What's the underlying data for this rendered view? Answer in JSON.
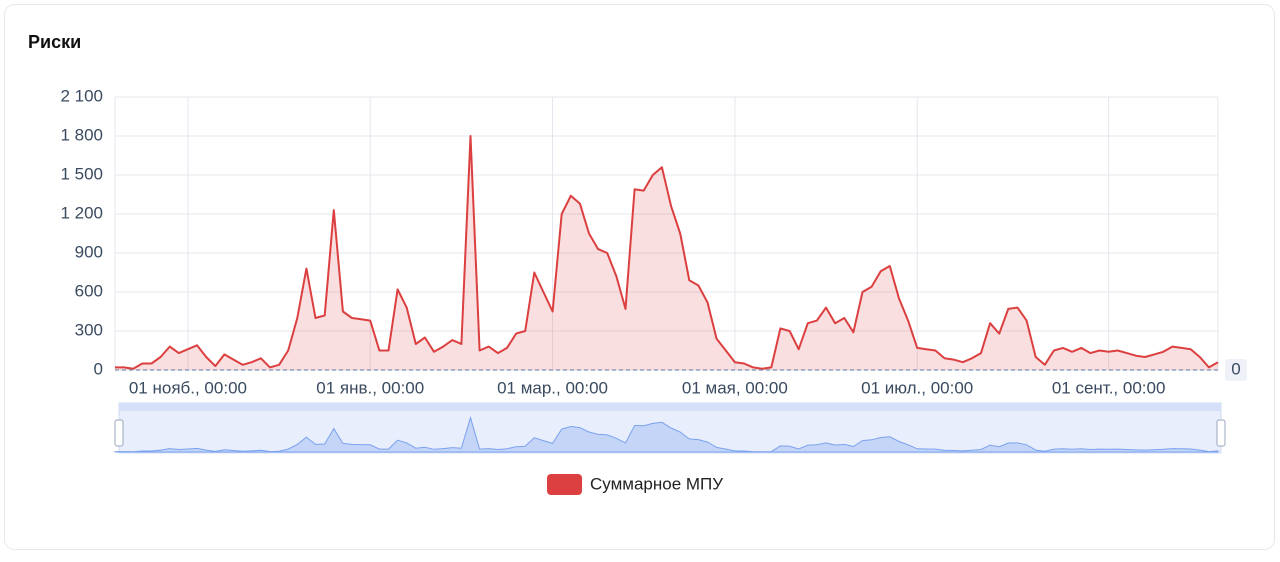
{
  "chart_data": {
    "type": "area",
    "title": "Риски",
    "categories": [
      null,
      null,
      null,
      null,
      null,
      null,
      null,
      null,
      "01 нояб., 00:00",
      null,
      null,
      null,
      null,
      null,
      null,
      null,
      null,
      null,
      null,
      null,
      null,
      null,
      null,
      null,
      null,
      null,
      null,
      null,
      "01 янв., 00:00",
      null,
      null,
      null,
      null,
      null,
      null,
      null,
      null,
      null,
      null,
      null,
      null,
      null,
      null,
      null,
      null,
      null,
      null,
      null,
      "01 мар., 00:00",
      null,
      null,
      null,
      null,
      null,
      null,
      null,
      null,
      null,
      null,
      null,
      null,
      null,
      null,
      null,
      null,
      null,
      null,
      null,
      "01 мая, 00:00",
      null,
      null,
      null,
      null,
      null,
      null,
      null,
      null,
      null,
      null,
      null,
      null,
      null,
      null,
      null,
      null,
      null,
      null,
      null,
      "01 июл., 00:00",
      null,
      null,
      null,
      null,
      null,
      null,
      null,
      null,
      null,
      null,
      null,
      null,
      null,
      null,
      null,
      null,
      null,
      null,
      null,
      null,
      "01 сент., 00:00",
      null,
      null,
      null,
      null,
      null,
      null,
      null,
      null,
      null,
      null,
      null,
      null
    ],
    "series": [
      {
        "name": "Суммарное МПУ",
        "color": "#dc3f3f",
        "values": [
          20,
          20,
          10,
          50,
          50,
          100,
          180,
          130,
          160,
          190,
          100,
          30,
          120,
          80,
          40,
          60,
          90,
          20,
          40,
          150,
          400,
          780,
          400,
          420,
          1230,
          450,
          400,
          390,
          380,
          150,
          150,
          620,
          480,
          200,
          250,
          140,
          180,
          230,
          200,
          1800,
          150,
          180,
          130,
          170,
          280,
          300,
          750,
          600,
          450,
          1200,
          1340,
          1280,
          1050,
          930,
          900,
          720,
          470,
          1390,
          1380,
          1500,
          1560,
          1260,
          1050,
          690,
          650,
          520,
          240,
          150,
          60,
          50,
          20,
          10,
          20,
          320,
          300,
          160,
          360,
          380,
          480,
          360,
          400,
          290,
          600,
          640,
          760,
          800,
          550,
          380,
          170,
          160,
          150,
          90,
          80,
          60,
          90,
          130,
          360,
          280,
          470,
          480,
          380,
          100,
          40,
          150,
          170,
          140,
          170,
          130,
          150,
          140,
          150,
          130,
          110,
          100,
          120,
          140,
          180,
          170,
          160,
          100,
          20,
          60
        ]
      }
    ],
    "ylim": [
      0,
      2100
    ],
    "yticks": [
      0,
      300,
      600,
      900,
      {
        "value": 1200,
        "label": "1 200"
      },
      {
        "value": 1500,
        "label": "1 500"
      },
      {
        "value": 1800,
        "label": "1 800"
      },
      {
        "value": 2100,
        "label": "2 100"
      }
    ],
    "mark_line": 0,
    "grid": true
  }
}
